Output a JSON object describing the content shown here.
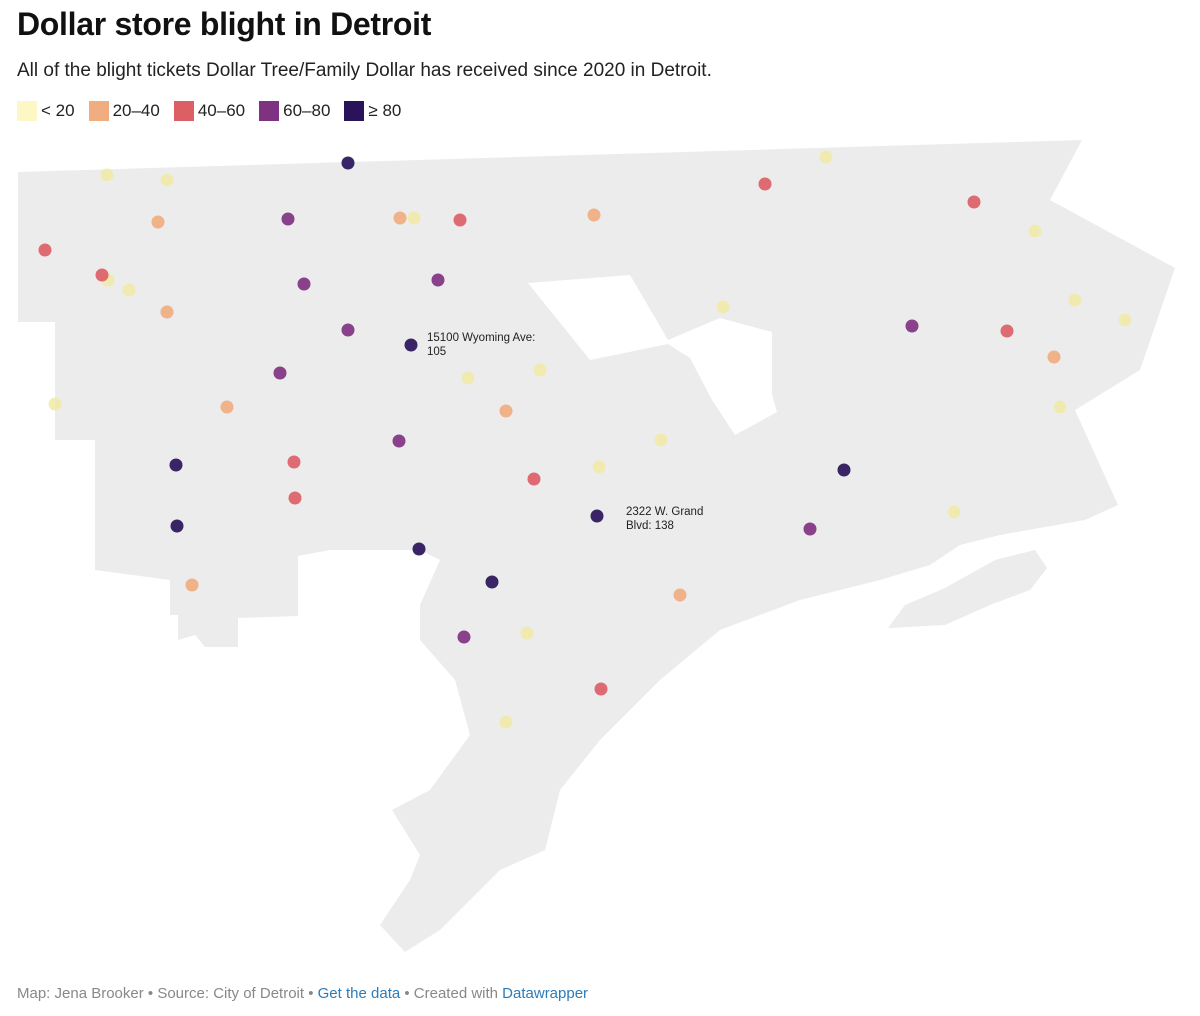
{
  "title": "Dollar store blight in Detroit",
  "subtitle": "All of the blight tickets Dollar Tree/Family Dollar has received since 2020 in Detroit.",
  "legend": [
    {
      "label": "< 20",
      "color": "#fcf7c4"
    },
    {
      "label": "20–40",
      "color": "#f0ad80"
    },
    {
      "label": "40–60",
      "color": "#dc5f66"
    },
    {
      "label": "60–80",
      "color": "#7f3281"
    },
    {
      "label": "≥ 80",
      "color": "#29135a"
    }
  ],
  "map": {
    "land_color": "#ececec"
  },
  "annotations": [
    {
      "line1": "15100 Wyoming Ave:",
      "line2": "105"
    },
    {
      "line1": "2322 W. Grand",
      "line2": "Blvd: 138"
    }
  ],
  "footer": {
    "credit": "Map: Jena Brooker",
    "sep1": " • ",
    "source": "Source: City of Detroit",
    "sep2": " • ",
    "data_link": "Get the data",
    "sep3": " • ",
    "created": "Created with ",
    "tool_link": "Datawrapper"
  }
}
